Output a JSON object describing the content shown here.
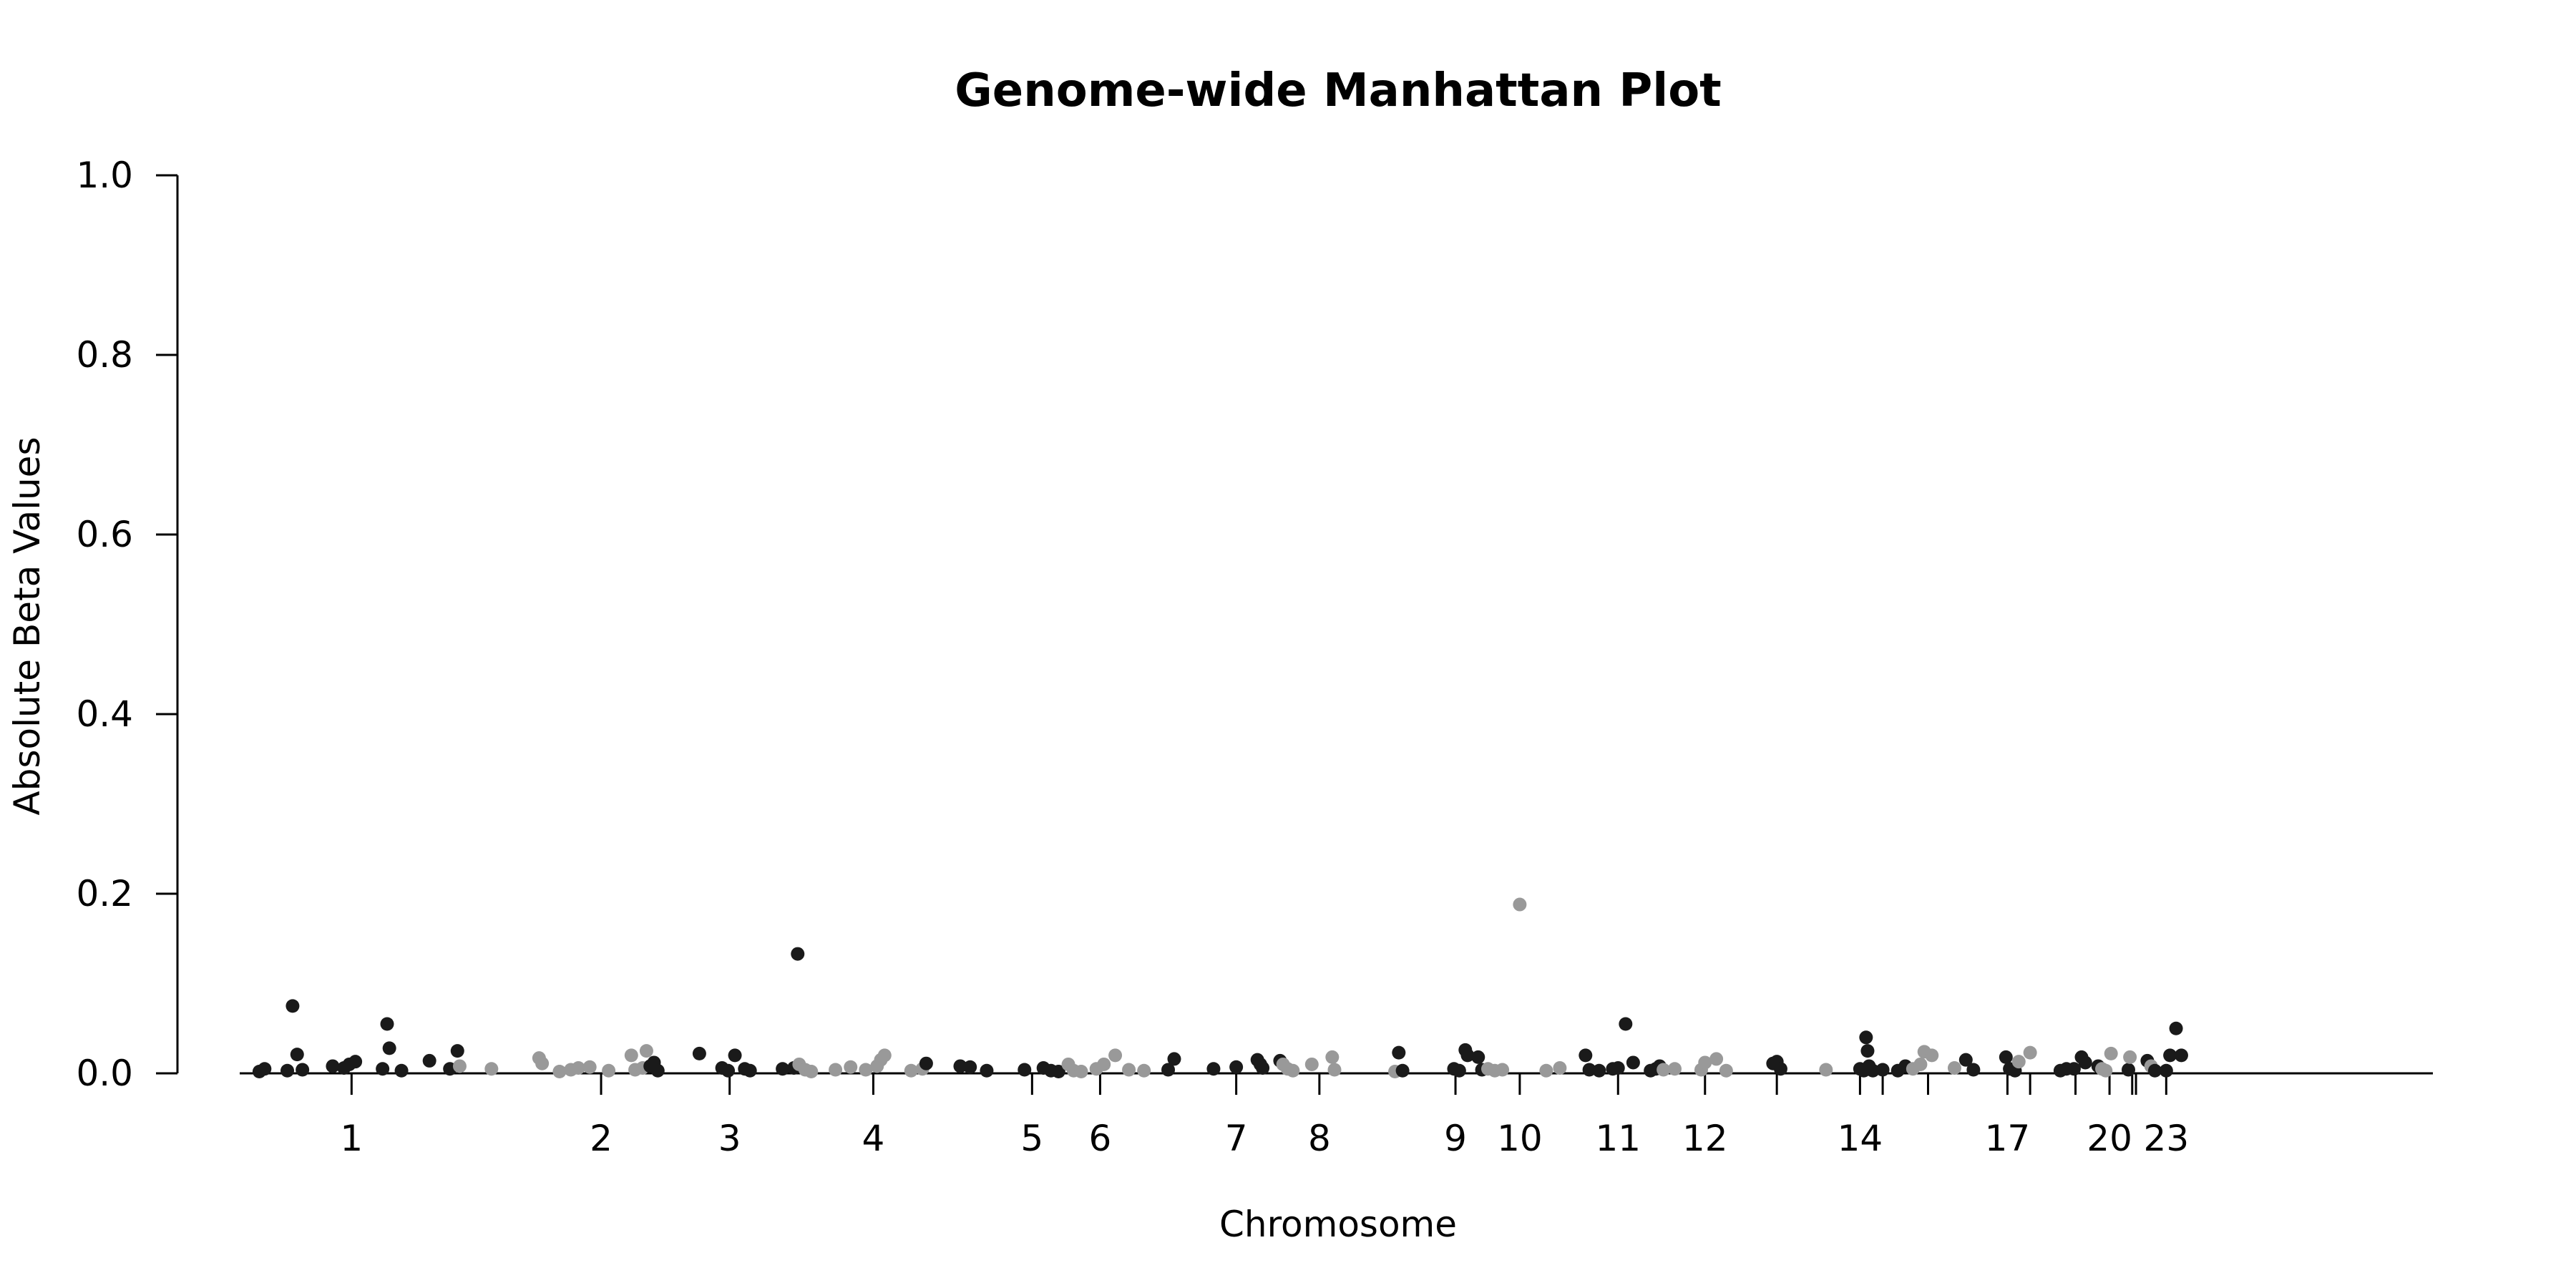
{
  "chart_data": {
    "type": "scatter",
    "title": "Genome-wide Manhattan Plot",
    "xlabel": "Chromosome",
    "ylabel": "Absolute Beta Values",
    "ylim": [
      0,
      1.0
    ],
    "xlim": [
      0,
      3000
    ],
    "y_ticks": [
      "0.0",
      "0.2",
      "0.4",
      "0.6",
      "0.8",
      "1.0"
    ],
    "grid": false,
    "legend": "none",
    "colors": {
      "odd": "#1a1a1a",
      "even": "#999999"
    },
    "chromosome_ticks": [
      {
        "label": "1",
        "pos": 200
      },
      {
        "label": "2",
        "pos": 530
      },
      {
        "label": "3",
        "pos": 700
      },
      {
        "label": "4",
        "pos": 890
      },
      {
        "label": "5",
        "pos": 1100
      },
      {
        "label": "6",
        "pos": 1190
      },
      {
        "label": "7",
        "pos": 1370
      },
      {
        "label": "8",
        "pos": 1480
      },
      {
        "label": "9",
        "pos": 1660
      },
      {
        "label": "10",
        "pos": 1745
      },
      {
        "label": "11",
        "pos": 1875
      },
      {
        "label": "12",
        "pos": 1990
      },
      {
        "label": "",
        "pos": 2085
      },
      {
        "label": "14",
        "pos": 2195
      },
      {
        "label": "",
        "pos": 2225
      },
      {
        "label": "",
        "pos": 2285
      },
      {
        "label": "17",
        "pos": 2390
      },
      {
        "label": "",
        "pos": 2420
      },
      {
        "label": "",
        "pos": 2480
      },
      {
        "label": "20",
        "pos": 2525
      },
      {
        "label": "",
        "pos": 2555
      },
      {
        "label": "",
        "pos": 2560
      },
      {
        "label": "23",
        "pos": 2600
      }
    ],
    "points": [
      {
        "x": 78,
        "y": 0.002,
        "c": "odd"
      },
      {
        "x": 85,
        "y": 0.005,
        "c": "odd"
      },
      {
        "x": 115,
        "y": 0.003,
        "c": "odd"
      },
      {
        "x": 122,
        "y": 0.075,
        "c": "odd"
      },
      {
        "x": 128,
        "y": 0.021,
        "c": "odd"
      },
      {
        "x": 135,
        "y": 0.004,
        "c": "odd"
      },
      {
        "x": 175,
        "y": 0.008,
        "c": "odd"
      },
      {
        "x": 190,
        "y": 0.006,
        "c": "odd"
      },
      {
        "x": 197,
        "y": 0.01,
        "c": "odd"
      },
      {
        "x": 205,
        "y": 0.013,
        "c": "odd"
      },
      {
        "x": 241,
        "y": 0.005,
        "c": "odd"
      },
      {
        "x": 247,
        "y": 0.055,
        "c": "odd"
      },
      {
        "x": 250,
        "y": 0.028,
        "c": "odd"
      },
      {
        "x": 266,
        "y": 0.003,
        "c": "odd"
      },
      {
        "x": 303,
        "y": 0.014,
        "c": "odd"
      },
      {
        "x": 330,
        "y": 0.005,
        "c": "odd"
      },
      {
        "x": 340,
        "y": 0.025,
        "c": "odd"
      },
      {
        "x": 343,
        "y": 0.008,
        "c": "even"
      },
      {
        "x": 385,
        "y": 0.005,
        "c": "even"
      },
      {
        "x": 448,
        "y": 0.017,
        "c": "even"
      },
      {
        "x": 452,
        "y": 0.011,
        "c": "even"
      },
      {
        "x": 475,
        "y": 0.002,
        "c": "even"
      },
      {
        "x": 490,
        "y": 0.004,
        "c": "even"
      },
      {
        "x": 500,
        "y": 0.006,
        "c": "even"
      },
      {
        "x": 515,
        "y": 0.007,
        "c": "even"
      },
      {
        "x": 540,
        "y": 0.003,
        "c": "even"
      },
      {
        "x": 570,
        "y": 0.02,
        "c": "even"
      },
      {
        "x": 575,
        "y": 0.004,
        "c": "even"
      },
      {
        "x": 585,
        "y": 0.006,
        "c": "even"
      },
      {
        "x": 590,
        "y": 0.025,
        "c": "even"
      },
      {
        "x": 595,
        "y": 0.008,
        "c": "odd"
      },
      {
        "x": 600,
        "y": 0.012,
        "c": "odd"
      },
      {
        "x": 605,
        "y": 0.003,
        "c": "odd"
      },
      {
        "x": 660,
        "y": 0.022,
        "c": "odd"
      },
      {
        "x": 690,
        "y": 0.006,
        "c": "odd"
      },
      {
        "x": 698,
        "y": 0.003,
        "c": "odd"
      },
      {
        "x": 707,
        "y": 0.02,
        "c": "odd"
      },
      {
        "x": 720,
        "y": 0.005,
        "c": "odd"
      },
      {
        "x": 727,
        "y": 0.003,
        "c": "odd"
      },
      {
        "x": 770,
        "y": 0.005,
        "c": "odd"
      },
      {
        "x": 785,
        "y": 0.006,
        "c": "odd"
      },
      {
        "x": 790,
        "y": 0.133,
        "c": "odd"
      },
      {
        "x": 792,
        "y": 0.01,
        "c": "even"
      },
      {
        "x": 800,
        "y": 0.004,
        "c": "even"
      },
      {
        "x": 808,
        "y": 0.002,
        "c": "even"
      },
      {
        "x": 840,
        "y": 0.004,
        "c": "even"
      },
      {
        "x": 860,
        "y": 0.007,
        "c": "even"
      },
      {
        "x": 880,
        "y": 0.004,
        "c": "even"
      },
      {
        "x": 895,
        "y": 0.008,
        "c": "even"
      },
      {
        "x": 900,
        "y": 0.015,
        "c": "even"
      },
      {
        "x": 905,
        "y": 0.02,
        "c": "even"
      },
      {
        "x": 940,
        "y": 0.003,
        "c": "even"
      },
      {
        "x": 955,
        "y": 0.005,
        "c": "even"
      },
      {
        "x": 960,
        "y": 0.011,
        "c": "odd"
      },
      {
        "x": 1005,
        "y": 0.008,
        "c": "odd"
      },
      {
        "x": 1018,
        "y": 0.007,
        "c": "odd"
      },
      {
        "x": 1040,
        "y": 0.003,
        "c": "odd"
      },
      {
        "x": 1090,
        "y": 0.004,
        "c": "odd"
      },
      {
        "x": 1115,
        "y": 0.006,
        "c": "odd"
      },
      {
        "x": 1125,
        "y": 0.003,
        "c": "odd"
      },
      {
        "x": 1135,
        "y": 0.002,
        "c": "odd"
      },
      {
        "x": 1148,
        "y": 0.01,
        "c": "even"
      },
      {
        "x": 1155,
        "y": 0.003,
        "c": "even"
      },
      {
        "x": 1165,
        "y": 0.002,
        "c": "even"
      },
      {
        "x": 1185,
        "y": 0.005,
        "c": "even"
      },
      {
        "x": 1195,
        "y": 0.01,
        "c": "even"
      },
      {
        "x": 1210,
        "y": 0.02,
        "c": "even"
      },
      {
        "x": 1228,
        "y": 0.004,
        "c": "even"
      },
      {
        "x": 1248,
        "y": 0.003,
        "c": "even"
      },
      {
        "x": 1280,
        "y": 0.004,
        "c": "odd"
      },
      {
        "x": 1288,
        "y": 0.016,
        "c": "odd"
      },
      {
        "x": 1340,
        "y": 0.005,
        "c": "odd"
      },
      {
        "x": 1370,
        "y": 0.007,
        "c": "odd"
      },
      {
        "x": 1398,
        "y": 0.015,
        "c": "odd"
      },
      {
        "x": 1402,
        "y": 0.01,
        "c": "odd"
      },
      {
        "x": 1405,
        "y": 0.006,
        "c": "odd"
      },
      {
        "x": 1428,
        "y": 0.014,
        "c": "odd"
      },
      {
        "x": 1432,
        "y": 0.01,
        "c": "even"
      },
      {
        "x": 1438,
        "y": 0.005,
        "c": "even"
      },
      {
        "x": 1445,
        "y": 0.003,
        "c": "even"
      },
      {
        "x": 1470,
        "y": 0.01,
        "c": "even"
      },
      {
        "x": 1497,
        "y": 0.018,
        "c": "even"
      },
      {
        "x": 1500,
        "y": 0.004,
        "c": "even"
      },
      {
        "x": 1580,
        "y": 0.002,
        "c": "even"
      },
      {
        "x": 1585,
        "y": 0.023,
        "c": "odd"
      },
      {
        "x": 1590,
        "y": 0.003,
        "c": "odd"
      },
      {
        "x": 1658,
        "y": 0.005,
        "c": "odd"
      },
      {
        "x": 1665,
        "y": 0.003,
        "c": "odd"
      },
      {
        "x": 1673,
        "y": 0.026,
        "c": "odd"
      },
      {
        "x": 1676,
        "y": 0.02,
        "c": "odd"
      },
      {
        "x": 1690,
        "y": 0.018,
        "c": "odd"
      },
      {
        "x": 1695,
        "y": 0.004,
        "c": "odd"
      },
      {
        "x": 1703,
        "y": 0.005,
        "c": "even"
      },
      {
        "x": 1712,
        "y": 0.003,
        "c": "even"
      },
      {
        "x": 1722,
        "y": 0.004,
        "c": "even"
      },
      {
        "x": 1745,
        "y": 0.188,
        "c": "even"
      },
      {
        "x": 1780,
        "y": 0.003,
        "c": "even"
      },
      {
        "x": 1798,
        "y": 0.006,
        "c": "even"
      },
      {
        "x": 1832,
        "y": 0.02,
        "c": "odd"
      },
      {
        "x": 1837,
        "y": 0.004,
        "c": "odd"
      },
      {
        "x": 1850,
        "y": 0.003,
        "c": "odd"
      },
      {
        "x": 1868,
        "y": 0.005,
        "c": "odd"
      },
      {
        "x": 1875,
        "y": 0.006,
        "c": "odd"
      },
      {
        "x": 1885,
        "y": 0.055,
        "c": "odd"
      },
      {
        "x": 1895,
        "y": 0.012,
        "c": "odd"
      },
      {
        "x": 1918,
        "y": 0.003,
        "c": "odd"
      },
      {
        "x": 1925,
        "y": 0.005,
        "c": "odd"
      },
      {
        "x": 1930,
        "y": 0.008,
        "c": "odd"
      },
      {
        "x": 1935,
        "y": 0.004,
        "c": "even"
      },
      {
        "x": 1950,
        "y": 0.005,
        "c": "even"
      },
      {
        "x": 1985,
        "y": 0.004,
        "c": "even"
      },
      {
        "x": 1990,
        "y": 0.012,
        "c": "even"
      },
      {
        "x": 2005,
        "y": 0.016,
        "c": "even"
      },
      {
        "x": 2018,
        "y": 0.003,
        "c": "even"
      },
      {
        "x": 2080,
        "y": 0.011,
        "c": "odd"
      },
      {
        "x": 2085,
        "y": 0.013,
        "c": "odd"
      },
      {
        "x": 2090,
        "y": 0.005,
        "c": "odd"
      },
      {
        "x": 2150,
        "y": 0.004,
        "c": "even"
      },
      {
        "x": 2195,
        "y": 0.005,
        "c": "odd"
      },
      {
        "x": 2200,
        "y": 0.003,
        "c": "odd"
      },
      {
        "x": 2203,
        "y": 0.04,
        "c": "odd"
      },
      {
        "x": 2205,
        "y": 0.025,
        "c": "odd"
      },
      {
        "x": 2207,
        "y": 0.008,
        "c": "odd"
      },
      {
        "x": 2212,
        "y": 0.003,
        "c": "odd"
      },
      {
        "x": 2225,
        "y": 0.004,
        "c": "odd"
      },
      {
        "x": 2245,
        "y": 0.003,
        "c": "odd"
      },
      {
        "x": 2255,
        "y": 0.008,
        "c": "odd"
      },
      {
        "x": 2265,
        "y": 0.005,
        "c": "even"
      },
      {
        "x": 2275,
        "y": 0.01,
        "c": "even"
      },
      {
        "x": 2280,
        "y": 0.024,
        "c": "even"
      },
      {
        "x": 2290,
        "y": 0.02,
        "c": "even"
      },
      {
        "x": 2320,
        "y": 0.006,
        "c": "even"
      },
      {
        "x": 2335,
        "y": 0.015,
        "c": "odd"
      },
      {
        "x": 2345,
        "y": 0.004,
        "c": "odd"
      },
      {
        "x": 2388,
        "y": 0.018,
        "c": "odd"
      },
      {
        "x": 2393,
        "y": 0.005,
        "c": "odd"
      },
      {
        "x": 2400,
        "y": 0.003,
        "c": "odd"
      },
      {
        "x": 2405,
        "y": 0.013,
        "c": "even"
      },
      {
        "x": 2420,
        "y": 0.023,
        "c": "even"
      },
      {
        "x": 2460,
        "y": 0.003,
        "c": "odd"
      },
      {
        "x": 2468,
        "y": 0.005,
        "c": "odd"
      },
      {
        "x": 2478,
        "y": 0.005,
        "c": "odd"
      },
      {
        "x": 2488,
        "y": 0.018,
        "c": "odd"
      },
      {
        "x": 2493,
        "y": 0.012,
        "c": "odd"
      },
      {
        "x": 2510,
        "y": 0.008,
        "c": "odd"
      },
      {
        "x": 2515,
        "y": 0.005,
        "c": "even"
      },
      {
        "x": 2520,
        "y": 0.003,
        "c": "even"
      },
      {
        "x": 2527,
        "y": 0.022,
        "c": "even"
      },
      {
        "x": 2550,
        "y": 0.004,
        "c": "odd"
      },
      {
        "x": 2552,
        "y": 0.018,
        "c": "even"
      },
      {
        "x": 2575,
        "y": 0.014,
        "c": "odd"
      },
      {
        "x": 2580,
        "y": 0.008,
        "c": "even"
      },
      {
        "x": 2585,
        "y": 0.003,
        "c": "odd"
      },
      {
        "x": 2600,
        "y": 0.003,
        "c": "odd"
      },
      {
        "x": 2605,
        "y": 0.02,
        "c": "odd"
      },
      {
        "x": 2613,
        "y": 0.05,
        "c": "odd"
      },
      {
        "x": 2620,
        "y": 0.02,
        "c": "odd"
      }
    ]
  }
}
